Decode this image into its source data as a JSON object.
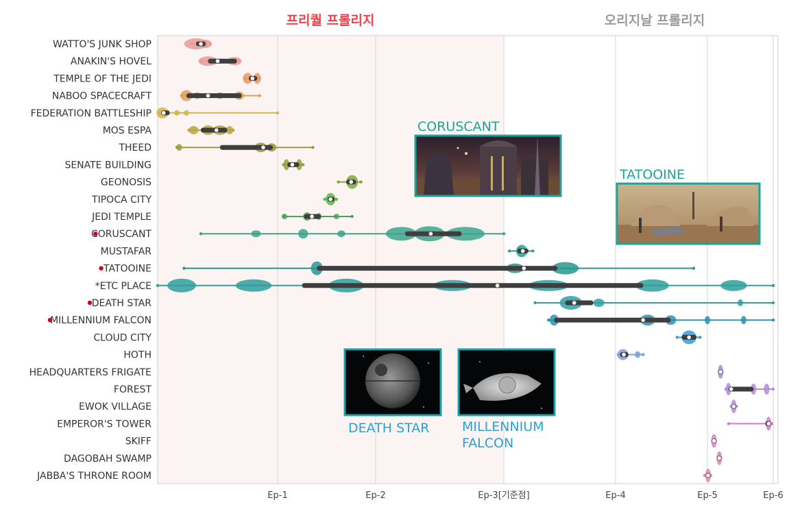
{
  "chart_data": {
    "type": "violin",
    "era_labels": [
      {
        "text": "프리퀄 프롤리지",
        "color": "#e8434b"
      },
      {
        "text": "오리지날 프롤리지",
        "color": "#9a9a9a"
      }
    ],
    "x_ticks": [
      {
        "value": 1,
        "label": "Ep-1"
      },
      {
        "value": 2,
        "label": "Ep-2"
      },
      {
        "value": 3,
        "label": "Ep-3[기준점]"
      },
      {
        "value": 4,
        "label": "Ep-4"
      },
      {
        "value": 5,
        "label": "Ep-5"
      },
      {
        "value": 6,
        "label": "Ep-6"
      }
    ],
    "xlim": [
      0.0,
      6.0
    ],
    "highlight_region": [
      0.0,
      3.0
    ],
    "categories": [
      {
        "label": "WATTO'S JUNK SHOP",
        "color": "#e99a96",
        "min": 0.28,
        "q1": 0.32,
        "median": 0.36,
        "q3": 0.4,
        "max": 0.44,
        "marked": false,
        "blobs": [
          [
            0.32,
            0.1,
            8
          ],
          [
            0.4,
            0.05,
            6
          ]
        ]
      },
      {
        "label": "ANAKIN'S HOVEL",
        "color": "#e99a96",
        "min": 0.36,
        "q1": 0.42,
        "median": 0.5,
        "q3": 0.66,
        "max": 0.68,
        "marked": false,
        "blobs": [
          [
            0.42,
            0.08,
            7
          ],
          [
            0.64,
            0.06,
            6
          ]
        ]
      },
      {
        "label": "TEMPLE OF THE JEDI",
        "color": "#e79a5f",
        "min": 0.73,
        "q1": 0.76,
        "median": 0.79,
        "q3": 0.83,
        "max": 0.85,
        "marked": false,
        "blobs": [
          [
            0.75,
            0.04,
            8
          ],
          [
            0.83,
            0.03,
            8
          ]
        ]
      },
      {
        "label": "NABOO SPACECRAFT",
        "color": "#e0a055",
        "min": 0.2,
        "q1": 0.24,
        "median": 0.42,
        "q3": 0.7,
        "max": 0.85,
        "marked": false,
        "blobs": [
          [
            0.24,
            0.05,
            8
          ],
          [
            0.33,
            0.03,
            5
          ],
          [
            0.52,
            0.03,
            5
          ],
          [
            0.68,
            0.04,
            6
          ]
        ]
      },
      {
        "label": "FEDERATION BATTLESHIP",
        "color": "#d4b44a",
        "min": 0.02,
        "q1": 0.03,
        "median": 0.05,
        "q3": 0.1,
        "max": 1.0,
        "marked": false,
        "blobs": [
          [
            0.04,
            0.05,
            8
          ],
          [
            0.16,
            0.02,
            4
          ],
          [
            0.24,
            0.02,
            4
          ]
        ]
      },
      {
        "label": "MOS ESPA",
        "color": "#b7a43f",
        "min": 0.26,
        "q1": 0.36,
        "median": 0.49,
        "q3": 0.58,
        "max": 0.63,
        "marked": false,
        "blobs": [
          [
            0.3,
            0.04,
            6
          ],
          [
            0.42,
            0.05,
            7
          ],
          [
            0.52,
            0.06,
            7
          ],
          [
            0.6,
            0.03,
            6
          ]
        ]
      },
      {
        "label": "THEED",
        "color": "#9a9a3d",
        "min": 0.16,
        "q1": 0.52,
        "median": 0.88,
        "q3": 0.96,
        "max": 1.36,
        "marked": false,
        "blobs": [
          [
            0.18,
            0.02,
            5
          ],
          [
            0.86,
            0.05,
            7
          ],
          [
            0.95,
            0.04,
            6
          ]
        ]
      },
      {
        "label": "SENATE BUILDING",
        "color": "#8fa13a",
        "min": 1.06,
        "q1": 1.1,
        "median": 1.15,
        "q3": 1.22,
        "max": 1.26,
        "marked": false,
        "blobs": [
          [
            1.09,
            0.03,
            8
          ],
          [
            1.22,
            0.03,
            8
          ]
        ]
      },
      {
        "label": "GEONOSIS",
        "color": "#7da83a",
        "min": 1.62,
        "q1": 1.7,
        "median": 1.75,
        "q3": 1.8,
        "max": 1.85,
        "marked": false,
        "blobs": [
          [
            1.76,
            0.06,
            10
          ]
        ]
      },
      {
        "label": "TIPOCA CITY",
        "color": "#5bb84a",
        "min": 1.48,
        "q1": 1.51,
        "median": 1.54,
        "q3": 1.58,
        "max": 1.6,
        "marked": false,
        "blobs": [
          [
            1.54,
            0.05,
            9
          ]
        ]
      },
      {
        "label": "JEDI TEMPLE",
        "color": "#4aa35b",
        "min": 1.06,
        "q1": 1.27,
        "median": 1.35,
        "q3": 1.44,
        "max": 1.76,
        "marked": false,
        "blobs": [
          [
            1.07,
            0.01,
            4
          ],
          [
            1.3,
            0.04,
            6
          ],
          [
            1.42,
            0.02,
            5
          ],
          [
            1.6,
            0.01,
            4
          ]
        ]
      },
      {
        "label": "CORUSCANT",
        "color": "#3ba58a",
        "min": 0.36,
        "q1": 2.23,
        "median": 2.43,
        "q3": 2.67,
        "max": 3.0,
        "marked": true,
        "blobs": [
          [
            0.82,
            0.04,
            5
          ],
          [
            1.26,
            0.05,
            7
          ],
          [
            1.65,
            0.04,
            5
          ],
          [
            2.2,
            0.12,
            10
          ],
          [
            2.42,
            0.12,
            11
          ],
          [
            2.7,
            0.15,
            10
          ]
        ]
      },
      {
        "label": "MUSTAFAR",
        "color": "#2d9e93",
        "min": 3.05,
        "q1": 3.12,
        "median": 3.17,
        "q3": 3.22,
        "max": 3.26,
        "marked": false,
        "blobs": [
          [
            3.16,
            0.05,
            9
          ]
        ]
      },
      {
        "label": "TATOOINE",
        "color": "#26968f",
        "min": 0.22,
        "q1": 1.4,
        "median": 3.18,
        "q3": 3.48,
        "max": 4.85,
        "marked": true,
        "blobs": [
          [
            1.4,
            0.06,
            10
          ],
          [
            3.1,
            0.08,
            7
          ],
          [
            3.55,
            0.12,
            9
          ]
        ]
      },
      {
        "label": "*ETC PLACE",
        "color": "#2e9f9b",
        "min": 0.0,
        "q1": 1.25,
        "median": 2.95,
        "q3": 4.3,
        "max": 6.0,
        "marked": false,
        "blobs": [
          [
            0.2,
            0.12,
            10
          ],
          [
            0.8,
            0.15,
            9
          ],
          [
            1.7,
            0.18,
            10
          ],
          [
            2.6,
            0.15,
            8
          ],
          [
            3.4,
            0.18,
            8
          ],
          [
            4.4,
            0.18,
            9
          ],
          [
            5.4,
            0.2,
            8
          ]
        ]
      },
      {
        "label": "DEATH STAR",
        "color": "#2e9fa6",
        "min": 3.28,
        "q1": 3.55,
        "median": 3.63,
        "q3": 3.8,
        "max": 6.0,
        "marked": true,
        "blobs": [
          [
            3.6,
            0.1,
            10
          ],
          [
            3.85,
            0.05,
            6
          ],
          [
            5.5,
            0.02,
            5
          ]
        ]
      },
      {
        "label": "MILLENNIUM FALCON",
        "color": "#2a93ae",
        "min": 3.4,
        "q1": 3.45,
        "median": 4.3,
        "q3": 4.6,
        "max": 6.0,
        "marked": true,
        "blobs": [
          [
            3.45,
            0.04,
            8
          ],
          [
            4.35,
            0.08,
            8
          ],
          [
            4.6,
            0.06,
            7
          ],
          [
            5.0,
            0.03,
            6
          ],
          [
            5.55,
            0.03,
            6
          ]
        ]
      },
      {
        "label": "CLOUD CITY",
        "color": "#3a9ad6",
        "min": 4.67,
        "q1": 4.72,
        "median": 4.8,
        "q3": 4.88,
        "max": 4.92,
        "marked": false,
        "blobs": [
          [
            4.8,
            0.08,
            10
          ]
        ]
      },
      {
        "label": "HOTH",
        "color": "#7a9be0",
        "min": 4.03,
        "q1": 4.05,
        "median": 4.09,
        "q3": 4.14,
        "max": 4.3,
        "marked": false,
        "blobs": [
          [
            4.08,
            0.06,
            8
          ],
          [
            4.24,
            0.02,
            5
          ]
        ]
      },
      {
        "label": "HEADQUARTERS FRIGATE",
        "color": "#8f95e0",
        "min": 5.18,
        "q1": 5.19,
        "median": 5.2,
        "q3": 5.21,
        "max": 5.22,
        "marked": false,
        "blobs": [
          [
            5.2,
            0.02,
            10
          ]
        ]
      },
      {
        "label": "FOREST",
        "color": "#b489de",
        "min": 5.28,
        "q1": 5.32,
        "median": 5.36,
        "q3": 5.7,
        "max": 6.0,
        "marked": false,
        "blobs": [
          [
            5.32,
            0.04,
            9
          ],
          [
            5.7,
            0.04,
            8
          ],
          [
            5.9,
            0.04,
            8
          ]
        ]
      },
      {
        "label": "EWOK VILLAGE",
        "color": "#b98be0",
        "min": 5.36,
        "q1": 5.38,
        "median": 5.4,
        "q3": 5.42,
        "max": 5.44,
        "marked": false,
        "blobs": [
          [
            5.4,
            0.02,
            10
          ]
        ]
      },
      {
        "label": "EMPEROR'S TOWER",
        "color": "#d07ad5",
        "min": 5.32,
        "q1": 5.88,
        "median": 5.93,
        "q3": 5.96,
        "max": 5.98,
        "marked": false,
        "blobs": [
          [
            5.93,
            0.03,
            10
          ]
        ]
      },
      {
        "label": "SKIFF",
        "color": "#de7fc9",
        "min": 5.08,
        "q1": 5.09,
        "median": 5.1,
        "q3": 5.11,
        "max": 5.12,
        "marked": false,
        "blobs": [
          [
            5.1,
            0.02,
            10
          ]
        ]
      },
      {
        "label": "DAGOBAH SWAMP",
        "color": "#de84b8",
        "min": 5.16,
        "q1": 5.17,
        "median": 5.18,
        "q3": 5.19,
        "max": 5.2,
        "marked": false,
        "blobs": [
          [
            5.18,
            0.02,
            10
          ]
        ]
      },
      {
        "label": "JABBA'S THRONE ROOM",
        "color": "#e28aa2",
        "min": 4.97,
        "q1": 4.99,
        "median": 5.01,
        "q3": 5.03,
        "max": 5.05,
        "marked": false,
        "blobs": [
          [
            5.01,
            0.03,
            10
          ]
        ]
      }
    ],
    "callouts": [
      {
        "label": "CORUSCANT",
        "color": "#1ea39a",
        "image": "coruscant-photo"
      },
      {
        "label": "TATOOINE",
        "color": "#1ea39a",
        "image": "tatooine-photo"
      },
      {
        "label": "DEATH STAR",
        "color": "#2d9fd0",
        "image": "death-star-photo"
      },
      {
        "label": "MILLENNIUM FALCON",
        "color": "#2d9fd0",
        "image": "millennium-falcon-photo"
      }
    ],
    "marker_color": "#d0021b"
  }
}
